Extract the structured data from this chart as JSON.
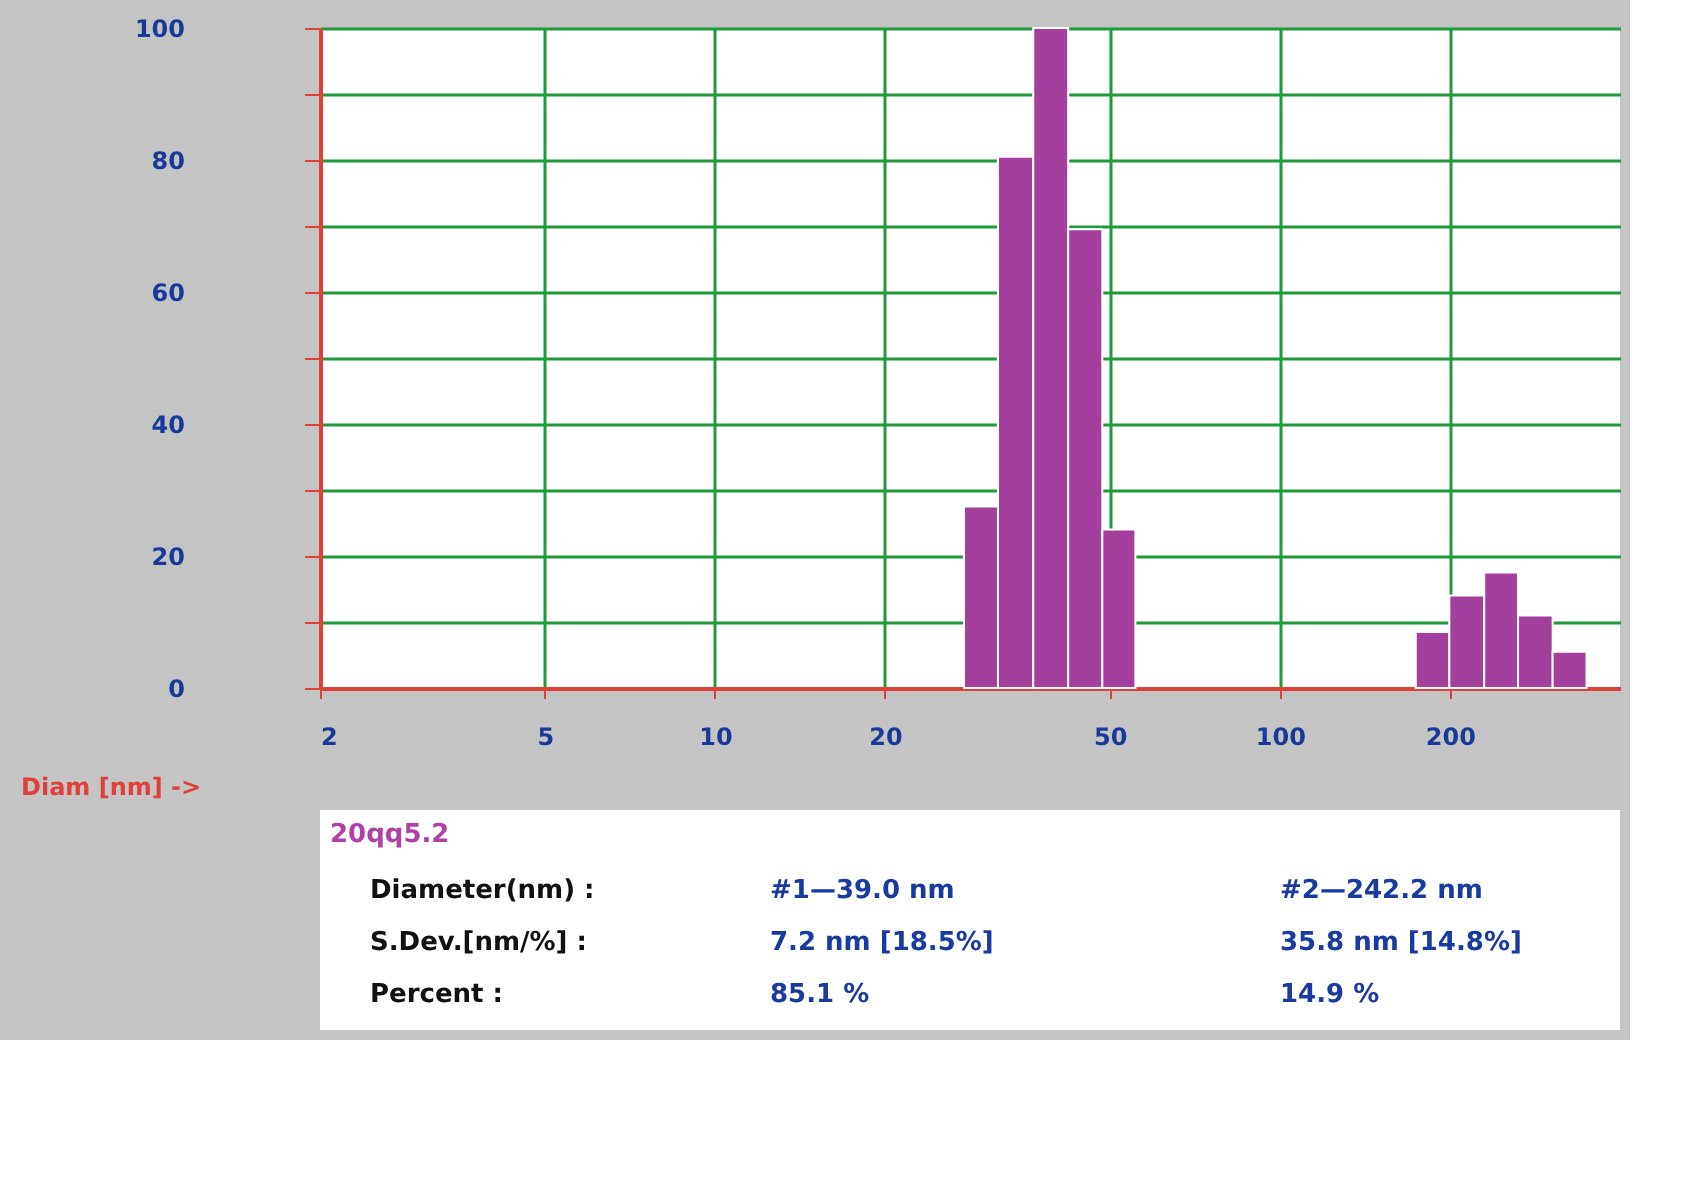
{
  "chart_data": {
    "type": "histogram",
    "xlabel": "Diam [nm] ->",
    "bins": [
      27.6,
      31.7,
      36.6,
      42.2,
      48.5,
      55.5,
      174,
      199.5,
      230,
      264,
      304,
      349
    ],
    "values": [
      27.5,
      80.5,
      100,
      69.5,
      24,
      0,
      8.5,
      14,
      17.5,
      11,
      5.5
    ],
    "color": "#a3409e",
    "log": "x",
    "xlim": [
      2,
      400
    ],
    "xticks": [
      2,
      5,
      10,
      20,
      50,
      100,
      200
    ],
    "ylim": [
      0,
      100
    ],
    "yticks": [
      0,
      {
        "value": 10,
        "label": null
      },
      20,
      {
        "value": 30,
        "label": null
      },
      40,
      {
        "value": 50,
        "label": null
      },
      60,
      {
        "value": 70,
        "label": null
      },
      80,
      {
        "value": 90,
        "label": null
      },
      100
    ],
    "grid": true,
    "annotations": [
      "20qq5.2",
      "Diameter(nm) :",
      "#1—39.0 nm",
      "#2—242.2 nm",
      "S.Dev.[nm/%] :",
      "7.2 nm [18.5%]",
      "35.8 nm [14.8%]",
      "Percent :",
      "85.1 %",
      "14.9 %"
    ]
  }
}
